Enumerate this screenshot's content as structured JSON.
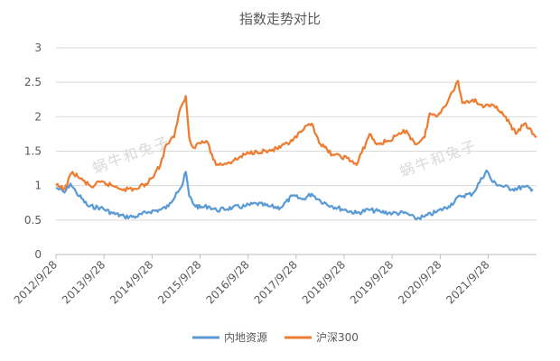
{
  "chart_data": {
    "type": "line",
    "title": "指数走势对比",
    "xlabel": "",
    "ylabel": "",
    "ylim": [
      0,
      3
    ],
    "y_ticks": [
      "0",
      "0.5",
      "1",
      "1.5",
      "2",
      "2.5",
      "3"
    ],
    "x_ticks": [
      "2012/9/28",
      "2013/9/28",
      "2014/9/28",
      "2015/9/28",
      "2016/9/28",
      "2017/9/28",
      "2018/9/28",
      "2019/9/28",
      "2020/9/28",
      "2021/9/28"
    ],
    "grid": true,
    "legend_position": "bottom",
    "watermark": "蜗牛和兔子",
    "series": [
      {
        "name": "内地资源",
        "color": "#5B9BD5",
        "x": [
          "2012/9/28",
          "2012/12/1",
          "2013/1/15",
          "2013/3/1",
          "2013/6/1",
          "2013/9/1",
          "2013/12/1",
          "2014/3/1",
          "2014/6/1",
          "2014/9/1",
          "2014/12/1",
          "2015/2/1",
          "2015/4/1",
          "2015/5/15",
          "2015/6/12",
          "2015/7/8",
          "2015/8/15",
          "2015/10/1",
          "2015/12/1",
          "2016/2/1",
          "2016/6/1",
          "2016/9/1",
          "2016/12/1",
          "2017/3/1",
          "2017/6/1",
          "2017/9/1",
          "2017/11/15",
          "2018/1/25",
          "2018/4/1",
          "2018/7/1",
          "2018/10/1",
          "2019/1/1",
          "2019/4/1",
          "2019/7/1",
          "2019/10/1",
          "2020/1/15",
          "2020/3/20",
          "2020/6/1",
          "2020/9/1",
          "2020/12/1",
          "2021/3/1",
          "2021/6/1",
          "2021/9/15",
          "2021/11/1",
          "2022/1/1",
          "2022/4/1",
          "2022/7/1",
          "2022/9/1"
        ],
        "values": [
          0.97,
          0.9,
          1.03,
          0.9,
          0.7,
          0.68,
          0.6,
          0.55,
          0.55,
          0.62,
          0.65,
          0.7,
          0.9,
          1.0,
          1.2,
          0.85,
          0.72,
          0.68,
          0.7,
          0.64,
          0.68,
          0.7,
          0.74,
          0.7,
          0.68,
          0.85,
          0.8,
          0.88,
          0.78,
          0.7,
          0.65,
          0.6,
          0.65,
          0.62,
          0.6,
          0.6,
          0.52,
          0.55,
          0.62,
          0.7,
          0.85,
          0.88,
          1.22,
          1.05,
          1.0,
          0.95,
          0.98,
          0.95
        ]
      },
      {
        "name": "沪深300",
        "color": "#ED7D31",
        "x": [
          "2012/9/28",
          "2012/12/1",
          "2013/2/1",
          "2013/4/1",
          "2013/6/25",
          "2013/9/1",
          "2013/12/1",
          "2014/3/1",
          "2014/6/1",
          "2014/9/1",
          "2014/12/1",
          "2015/1/15",
          "2015/3/15",
          "2015/4/20",
          "2015/6/12",
          "2015/7/8",
          "2015/8/10",
          "2015/9/1",
          "2015/11/15",
          "2016/1/28",
          "2016/6/1",
          "2016/9/1",
          "2016/12/1",
          "2017/3/1",
          "2017/6/1",
          "2017/9/1",
          "2017/11/15",
          "2018/1/25",
          "2018/4/1",
          "2018/7/1",
          "2018/10/20",
          "2019/1/1",
          "2019/4/10",
          "2019/6/1",
          "2019/9/1",
          "2019/12/1",
          "2020/1/15",
          "2020/3/20",
          "2020/6/1",
          "2020/7/10",
          "2020/9/1",
          "2020/12/1",
          "2021/2/10",
          "2021/3/15",
          "2021/6/1",
          "2021/9/1",
          "2021/12/1",
          "2022/3/10",
          "2022/4/26",
          "2022/6/30",
          "2022/9/30"
        ],
        "values": [
          1.0,
          0.95,
          1.2,
          1.1,
          0.98,
          1.05,
          1.0,
          0.95,
          0.95,
          1.05,
          1.3,
          1.6,
          1.7,
          2.05,
          2.3,
          1.7,
          1.55,
          1.6,
          1.65,
          1.3,
          1.35,
          1.45,
          1.5,
          1.5,
          1.55,
          1.65,
          1.8,
          1.9,
          1.6,
          1.45,
          1.4,
          1.3,
          1.75,
          1.6,
          1.65,
          1.75,
          1.8,
          1.6,
          1.7,
          2.05,
          2.0,
          2.25,
          2.52,
          2.2,
          2.25,
          2.15,
          2.15,
          1.9,
          1.75,
          1.9,
          1.7
        ]
      }
    ]
  }
}
